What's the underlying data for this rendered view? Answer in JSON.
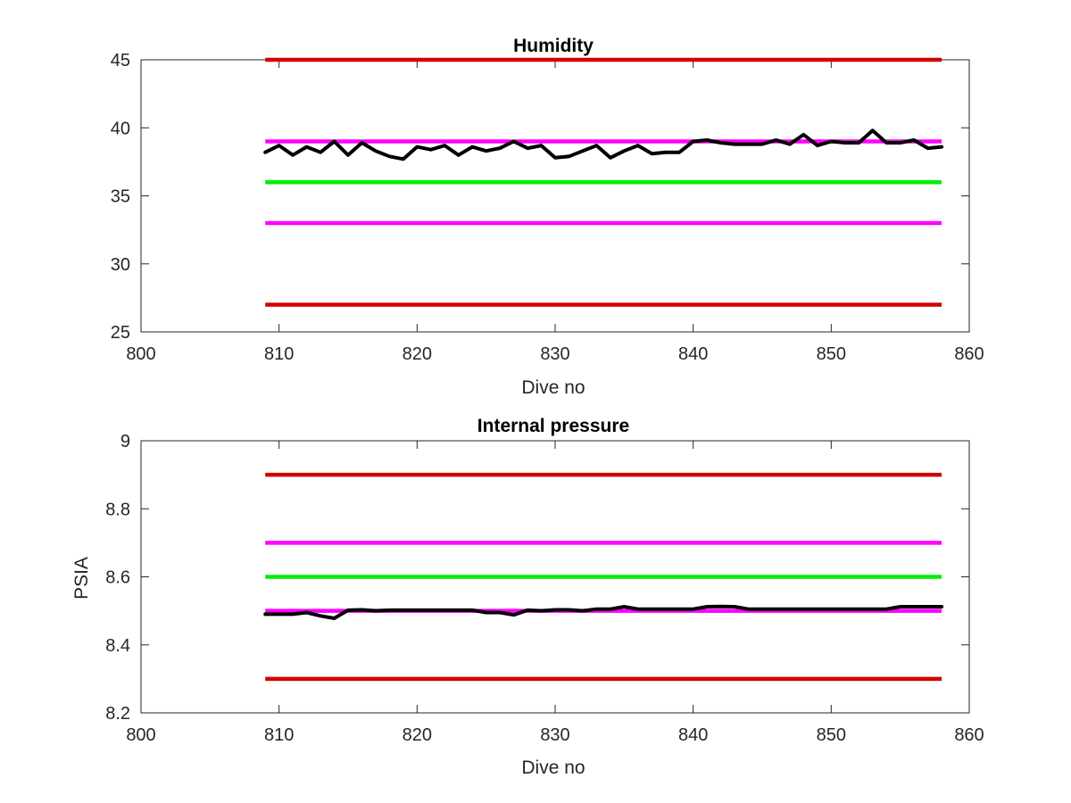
{
  "colors": {
    "limit_red": "#d40000",
    "limit_magenta": "#ff00ff",
    "target_green": "#00ee00",
    "measured": "#000000",
    "axes": "#262626"
  },
  "chart_data": [
    {
      "type": "line",
      "title": "Humidity",
      "xlabel": "Dive no",
      "ylabel": "",
      "xlim": [
        800,
        860
      ],
      "ylim": [
        25,
        45
      ],
      "xticks": [
        800,
        810,
        820,
        830,
        840,
        850,
        860
      ],
      "yticks": [
        25,
        30,
        35,
        40,
        45
      ],
      "grid": false,
      "reference_lines": [
        {
          "y": 45,
          "x": [
            809,
            858
          ],
          "color": "#d40000"
        },
        {
          "y": 39,
          "x": [
            809,
            858
          ],
          "color": "#ff00ff"
        },
        {
          "y": 36,
          "x": [
            809,
            858
          ],
          "color": "#00ee00"
        },
        {
          "y": 33,
          "x": [
            809,
            858
          ],
          "color": "#ff00ff"
        },
        {
          "y": 27,
          "x": [
            809,
            858
          ],
          "color": "#d40000"
        }
      ],
      "series": [
        {
          "color": "#000000",
          "x": [
            809,
            810,
            811,
            812,
            813,
            814,
            815,
            816,
            817,
            818,
            819,
            820,
            821,
            822,
            823,
            824,
            825,
            826,
            827,
            828,
            829,
            830,
            831,
            832,
            833,
            834,
            835,
            836,
            837,
            838,
            839,
            840,
            841,
            842,
            843,
            844,
            845,
            846,
            847,
            848,
            849,
            850,
            851,
            852,
            853,
            854,
            855,
            856,
            857,
            858
          ],
          "y": [
            38.2,
            38.7,
            38.0,
            38.6,
            38.2,
            39.0,
            38.0,
            38.9,
            38.3,
            37.9,
            37.7,
            38.6,
            38.4,
            38.7,
            38.0,
            38.6,
            38.3,
            38.5,
            39.0,
            38.5,
            38.7,
            37.8,
            37.9,
            38.3,
            38.7,
            37.8,
            38.3,
            38.7,
            38.1,
            38.2,
            38.2,
            39.0,
            39.1,
            38.9,
            38.8,
            38.8,
            38.8,
            39.1,
            38.8,
            39.5,
            38.7,
            39.0,
            38.9,
            38.9,
            39.8,
            38.9,
            38.9,
            39.1,
            38.5,
            38.6
          ]
        }
      ]
    },
    {
      "type": "line",
      "title": "Internal pressure",
      "xlabel": "Dive no",
      "ylabel": "PSIA",
      "xlim": [
        800,
        860
      ],
      "ylim": [
        8.2,
        9.0
      ],
      "xticks": [
        800,
        810,
        820,
        830,
        840,
        850,
        860
      ],
      "yticks": [
        8.2,
        8.4,
        8.6,
        8.8,
        9
      ],
      "ytick_labels": [
        "8.2",
        "8.4",
        "8.6",
        "8.8",
        "9"
      ],
      "grid": false,
      "reference_lines": [
        {
          "y": 8.9,
          "x": [
            809,
            858
          ],
          "color": "#d40000"
        },
        {
          "y": 8.7,
          "x": [
            809,
            858
          ],
          "color": "#ff00ff"
        },
        {
          "y": 8.6,
          "x": [
            809,
            858
          ],
          "color": "#00ee00"
        },
        {
          "y": 8.5,
          "x": [
            809,
            858
          ],
          "color": "#ff00ff"
        },
        {
          "y": 8.3,
          "x": [
            809,
            858
          ],
          "color": "#d40000"
        }
      ],
      "series": [
        {
          "color": "#000000",
          "x": [
            809,
            810,
            811,
            812,
            813,
            814,
            815,
            816,
            817,
            818,
            819,
            820,
            821,
            822,
            823,
            824,
            825,
            826,
            827,
            828,
            829,
            830,
            831,
            832,
            833,
            834,
            835,
            836,
            837,
            838,
            839,
            840,
            841,
            842,
            843,
            844,
            845,
            846,
            847,
            848,
            849,
            850,
            851,
            852,
            853,
            854,
            855,
            856,
            857,
            858
          ],
          "y": [
            8.49,
            8.49,
            8.49,
            8.495,
            8.485,
            8.478,
            8.502,
            8.503,
            8.5,
            8.502,
            8.502,
            8.502,
            8.502,
            8.502,
            8.502,
            8.502,
            8.495,
            8.495,
            8.488,
            8.502,
            8.5,
            8.503,
            8.503,
            8.5,
            8.505,
            8.505,
            8.512,
            8.505,
            8.505,
            8.505,
            8.505,
            8.505,
            8.512,
            8.513,
            8.512,
            8.505,
            8.505,
            8.505,
            8.505,
            8.505,
            8.505,
            8.505,
            8.505,
            8.505,
            8.505,
            8.505,
            8.512,
            8.512,
            8.512,
            8.512
          ]
        }
      ]
    }
  ]
}
